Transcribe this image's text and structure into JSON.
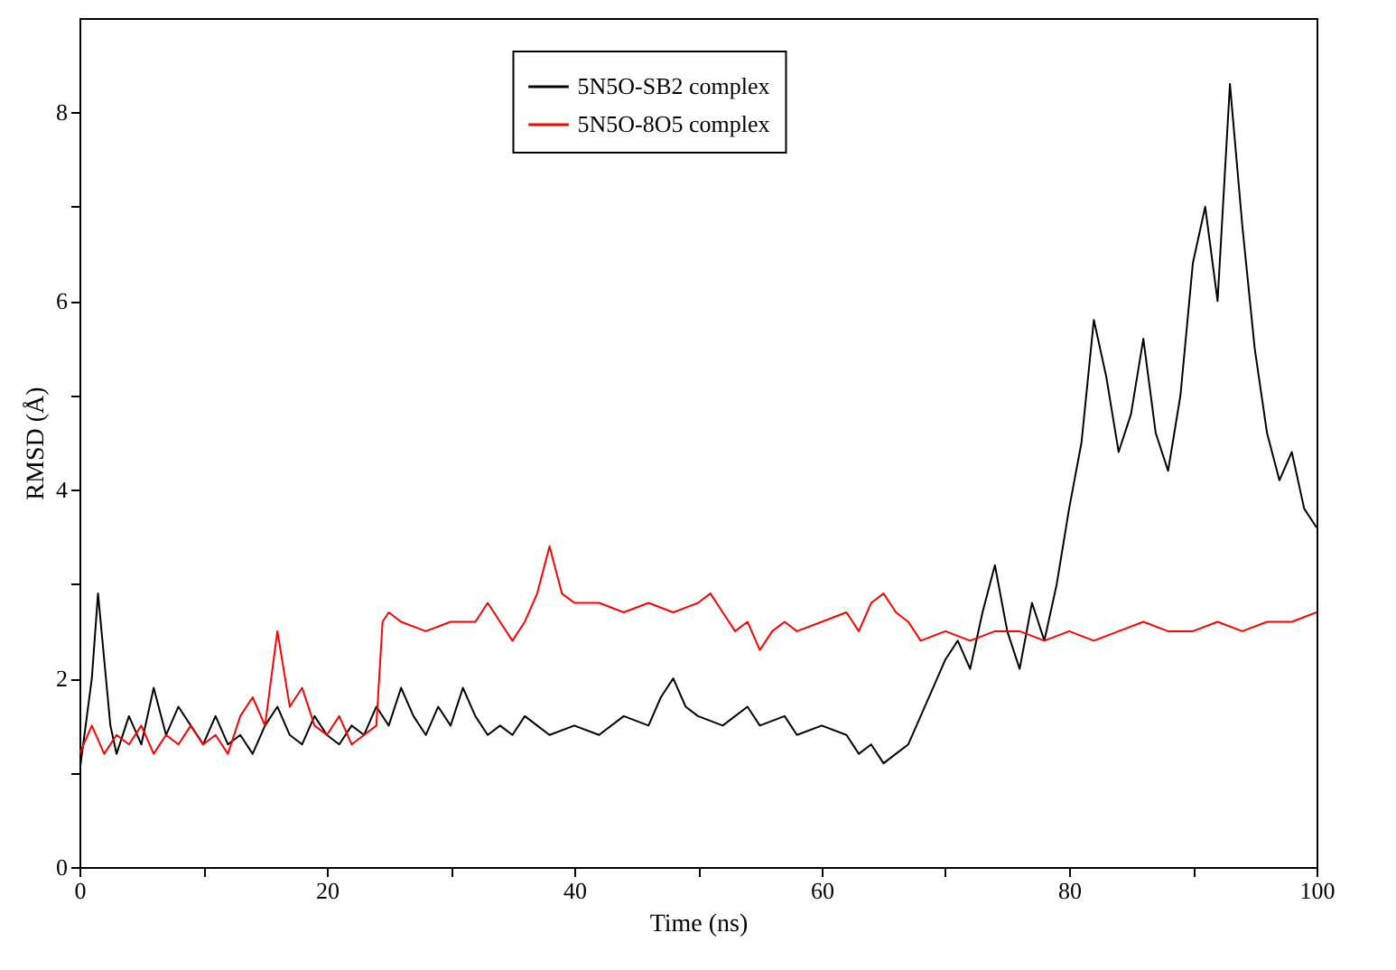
{
  "chart_data": {
    "type": "line",
    "xlabel": "Time (ns)",
    "ylabel": "RMSD (Å)",
    "xlim": [
      0,
      100
    ],
    "xticks": [
      0,
      {
        "value": 10,
        "label": null
      },
      20,
      {
        "value": 30,
        "label": null
      },
      40,
      {
        "value": 50,
        "label": null
      },
      60,
      {
        "value": 70,
        "label": null
      },
      80,
      {
        "value": 90,
        "label": null
      },
      100
    ],
    "ylim": [
      0,
      9
    ],
    "yticks": [
      0,
      {
        "value": 1,
        "label": null
      },
      2,
      {
        "value": 3,
        "label": null
      },
      4,
      {
        "value": 5,
        "label": null
      },
      6,
      {
        "value": 7,
        "label": null
      },
      8
    ],
    "grid": false,
    "legend": "top",
    "marker": "none",
    "line_style": "solid",
    "series": [
      {
        "name": "5N5O-SB2 complex",
        "color": "#000000",
        "x": [
          0,
          0.5,
          1,
          1.5,
          2,
          2.5,
          3,
          4,
          5,
          6,
          7,
          8,
          9,
          10,
          11,
          12,
          13,
          14,
          15,
          16,
          17,
          18,
          19,
          20,
          21,
          22,
          23,
          24,
          25,
          26,
          27,
          28,
          29,
          30,
          31,
          32,
          33,
          34,
          35,
          36,
          37,
          38,
          40,
          42,
          44,
          46,
          47,
          48,
          49,
          50,
          52,
          54,
          55,
          57,
          58,
          60,
          62,
          63,
          64,
          65,
          66,
          67,
          68,
          69,
          70,
          71,
          72,
          73,
          74,
          75,
          76,
          77,
          78,
          79,
          80,
          81,
          82,
          83,
          84,
          85,
          86,
          87,
          88,
          89,
          90,
          91,
          92,
          93,
          94,
          95,
          96,
          97,
          98,
          99,
          100
        ],
        "values": [
          1.0,
          1.5,
          2.0,
          2.9,
          2.2,
          1.5,
          1.2,
          1.6,
          1.3,
          1.9,
          1.4,
          1.7,
          1.5,
          1.3,
          1.6,
          1.3,
          1.4,
          1.2,
          1.5,
          1.7,
          1.4,
          1.3,
          1.6,
          1.4,
          1.3,
          1.5,
          1.4,
          1.7,
          1.5,
          1.9,
          1.6,
          1.4,
          1.7,
          1.5,
          1.9,
          1.6,
          1.4,
          1.5,
          1.4,
          1.6,
          1.5,
          1.4,
          1.5,
          1.4,
          1.6,
          1.5,
          1.8,
          2.0,
          1.7,
          1.6,
          1.5,
          1.7,
          1.5,
          1.6,
          1.4,
          1.5,
          1.4,
          1.2,
          1.3,
          1.1,
          1.2,
          1.3,
          1.6,
          1.9,
          2.2,
          2.4,
          2.1,
          2.7,
          3.2,
          2.5,
          2.1,
          2.8,
          2.4,
          3.0,
          3.8,
          4.5,
          5.8,
          5.2,
          4.4,
          4.8,
          5.6,
          4.6,
          4.2,
          5.0,
          6.4,
          7.0,
          6.0,
          8.3,
          6.8,
          5.5,
          4.6,
          4.1,
          4.4,
          3.8,
          3.6
        ]
      },
      {
        "name": "5N5O-8O5 complex",
        "color": "#ff0000",
        "x": [
          0,
          1,
          2,
          3,
          4,
          5,
          6,
          7,
          8,
          9,
          10,
          11,
          12,
          13,
          14,
          15,
          16,
          17,
          18,
          19,
          20,
          21,
          22,
          23,
          24,
          24.5,
          25,
          26,
          28,
          30,
          32,
          33,
          34,
          35,
          36,
          37,
          38,
          39,
          40,
          42,
          44,
          46,
          48,
          50,
          51,
          52,
          53,
          54,
          55,
          56,
          57,
          58,
          60,
          62,
          63,
          64,
          65,
          66,
          67,
          68,
          70,
          72,
          74,
          76,
          78,
          80,
          82,
          84,
          86,
          88,
          90,
          92,
          94,
          96,
          98,
          100
        ],
        "values": [
          1.2,
          1.5,
          1.2,
          1.4,
          1.3,
          1.5,
          1.2,
          1.4,
          1.3,
          1.5,
          1.3,
          1.4,
          1.2,
          1.6,
          1.8,
          1.5,
          2.5,
          1.7,
          1.9,
          1.5,
          1.4,
          1.6,
          1.3,
          1.4,
          1.5,
          2.6,
          2.7,
          2.6,
          2.5,
          2.6,
          2.6,
          2.8,
          2.6,
          2.4,
          2.6,
          2.9,
          3.4,
          2.9,
          2.8,
          2.8,
          2.7,
          2.8,
          2.7,
          2.8,
          2.9,
          2.7,
          2.5,
          2.6,
          2.3,
          2.5,
          2.6,
          2.5,
          2.6,
          2.7,
          2.5,
          2.8,
          2.9,
          2.7,
          2.6,
          2.4,
          2.5,
          2.4,
          2.5,
          2.5,
          2.4,
          2.5,
          2.4,
          2.5,
          2.6,
          2.5,
          2.5,
          2.6,
          2.5,
          2.6,
          2.6,
          2.7
        ]
      }
    ]
  }
}
